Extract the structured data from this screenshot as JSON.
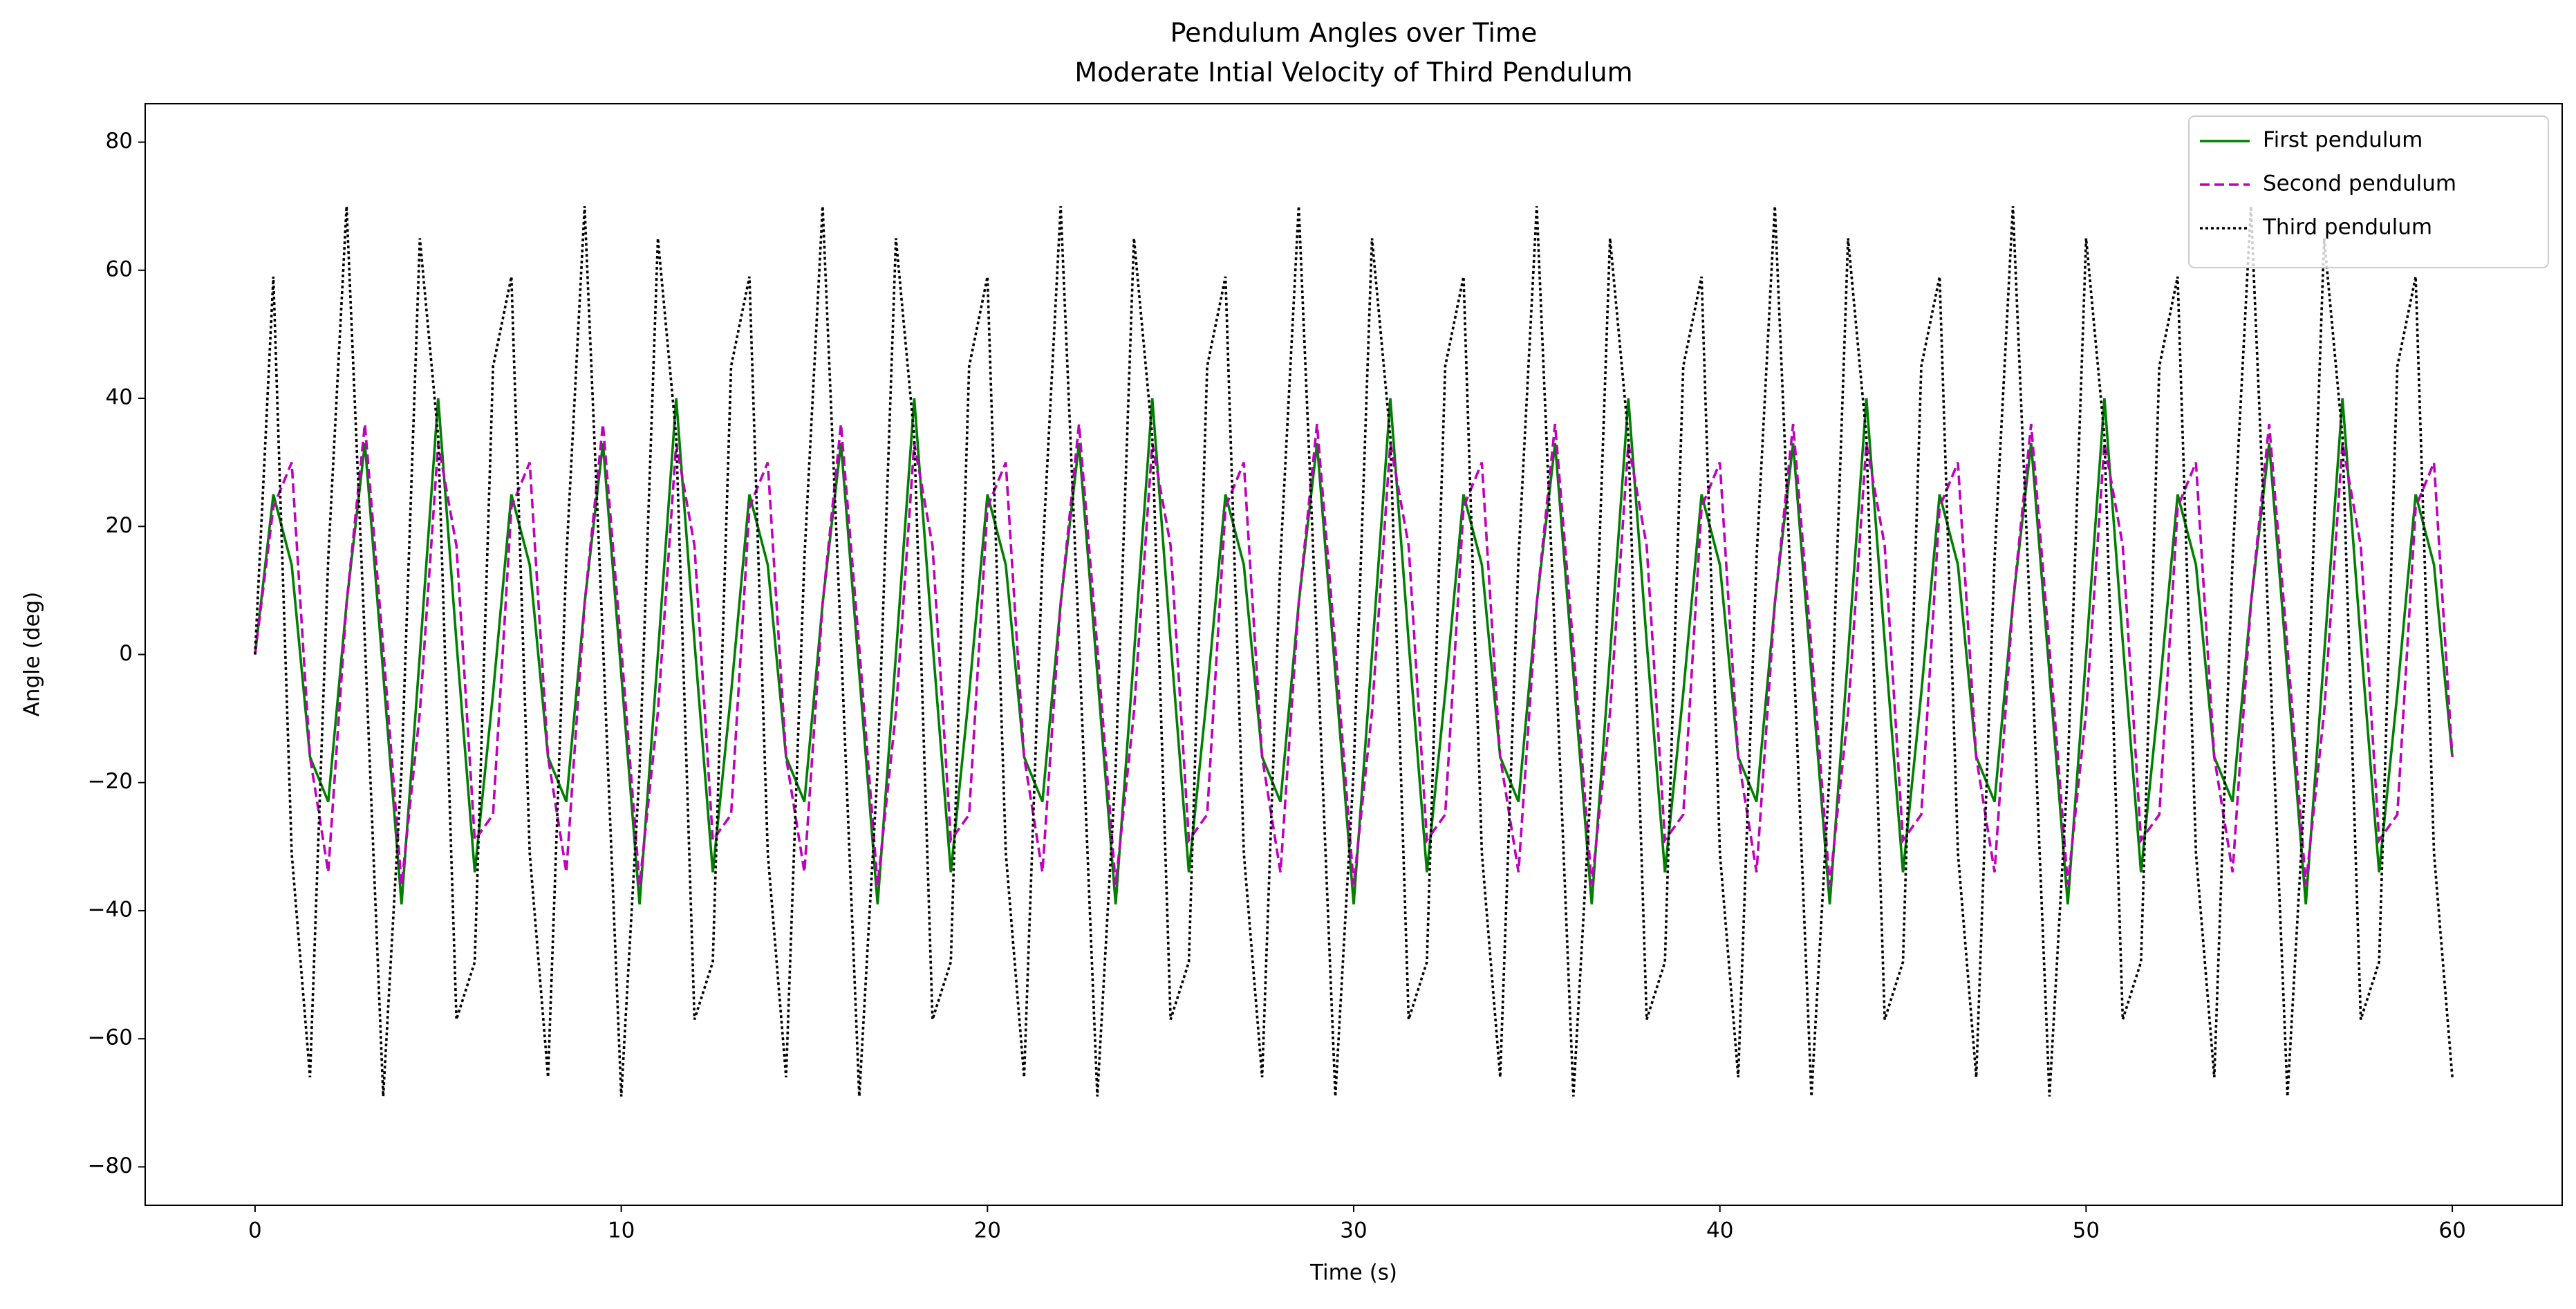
{
  "chart_data": {
    "type": "line",
    "title": "Pendulum Angles over Time",
    "subtitle": "Moderate Intial Velocity of Third Pendulum",
    "x_label": "Time (s)",
    "y_label": "Angle (deg)",
    "xlim": [
      -3,
      63
    ],
    "ylim": [
      -86,
      86
    ],
    "xticks": [
      0,
      10,
      20,
      30,
      40,
      50,
      60
    ],
    "yticks": [
      {
        "value": -80,
        "label": "−80"
      },
      {
        "value": -60,
        "label": "−60"
      },
      {
        "value": -40,
        "label": "−40"
      },
      {
        "value": -20,
        "label": "−20"
      },
      0,
      20,
      40,
      60,
      80
    ],
    "grid": false,
    "legend": "upper right",
    "x": [
      0,
      0.5,
      1,
      1.5,
      2,
      2.5,
      3,
      3.5,
      4,
      4.5,
      5,
      5.5,
      6,
      6.5,
      7,
      7.5,
      8,
      8.5,
      9,
      9.5,
      10,
      10.5,
      11,
      11.5,
      12,
      12.5,
      13,
      13.5,
      14,
      14.5,
      15,
      15.5,
      16,
      16.5,
      17,
      17.5,
      18,
      18.5,
      19,
      19.5,
      20,
      20.5,
      21,
      21.5,
      22,
      22.5,
      23,
      23.5,
      24,
      24.5,
      25,
      25.5,
      26,
      26.5,
      27,
      27.5,
      28,
      28.5,
      29,
      29.5,
      30,
      30.5,
      31,
      31.5,
      32,
      32.5,
      33,
      33.5,
      34,
      34.5,
      35,
      35.5,
      36,
      36.5,
      37,
      37.5,
      38,
      38.5,
      39,
      39.5,
      40,
      40.5,
      41,
      41.5,
      42,
      42.5,
      43,
      43.5,
      44,
      44.5,
      45,
      45.5,
      46,
      46.5,
      47,
      47.5,
      48,
      48.5,
      49,
      49.5,
      50,
      50.5,
      51,
      51.5,
      52,
      52.5,
      53,
      53.5,
      54,
      54.5,
      55,
      55.5,
      56,
      56.5,
      57,
      57.5,
      58,
      58.5,
      59,
      59.5,
      60
    ],
    "series": [
      {
        "name": "First pendulum",
        "color": "#008000",
        "linestyle": "solid",
        "values": [
          0,
          25,
          14,
          -16,
          -23,
          8,
          33,
          -3,
          -39,
          0,
          40,
          2,
          -34,
          -6,
          25,
          14,
          -16,
          -23,
          8,
          33,
          -3,
          -39,
          0,
          40,
          2,
          -34,
          -6,
          25,
          14,
          -16,
          -23,
          8,
          33,
          -3,
          -39,
          0,
          40,
          2,
          -34,
          -6,
          25,
          14,
          -16,
          -23,
          8,
          33,
          -3,
          -39,
          0,
          40,
          2,
          -34,
          -6,
          25,
          14,
          -16,
          -23,
          8,
          33,
          -3,
          -39,
          0,
          40,
          2,
          -34,
          -6,
          25,
          14,
          -16,
          -23,
          8,
          33,
          -3,
          -39,
          0,
          40,
          2,
          -34,
          -6,
          25,
          14,
          -16,
          -23,
          8,
          33,
          -3,
          -39,
          0,
          40,
          2,
          -34,
          -6,
          25,
          14,
          -16,
          -23,
          8,
          33,
          -3,
          -39,
          0,
          40,
          2,
          -34,
          -6,
          25,
          14,
          -16,
          -23,
          8,
          33,
          -3,
          -39,
          0,
          40,
          2,
          -34,
          -6,
          25,
          14,
          -16
        ]
      },
      {
        "name": "Second pendulum",
        "color": "#bf00bf",
        "linestyle": "dashed",
        "values": [
          0,
          23,
          30,
          -16,
          -34,
          8,
          36,
          1,
          -36,
          -9,
          33,
          17,
          -29,
          -25,
          23,
          30,
          -16,
          -34,
          8,
          36,
          1,
          -36,
          -9,
          33,
          17,
          -29,
          -25,
          23,
          30,
          -16,
          -34,
          8,
          36,
          1,
          -36,
          -9,
          33,
          17,
          -29,
          -25,
          23,
          30,
          -16,
          -34,
          8,
          36,
          1,
          -36,
          -9,
          33,
          17,
          -29,
          -25,
          23,
          30,
          -16,
          -34,
          8,
          36,
          1,
          -36,
          -9,
          33,
          17,
          -29,
          -25,
          23,
          30,
          -16,
          -34,
          8,
          36,
          1,
          -36,
          -9,
          33,
          17,
          -29,
          -25,
          23,
          30,
          -16,
          -34,
          8,
          36,
          1,
          -36,
          -9,
          33,
          17,
          -29,
          -25,
          23,
          30,
          -16,
          -34,
          8,
          36,
          1,
          -36,
          -9,
          33,
          17,
          -29,
          -25,
          23,
          30,
          -16,
          -34,
          8,
          36,
          1,
          -36,
          -9,
          33,
          17,
          -29,
          -25,
          23,
          30,
          -16
        ]
      },
      {
        "name": "Third pendulum",
        "color": "#000000",
        "linestyle": "dotted",
        "values": [
          0,
          59,
          -31,
          -66,
          15,
          70,
          2,
          -69,
          -18,
          65,
          34,
          -57,
          -48,
          45,
          59,
          -31,
          -66,
          15,
          70,
          2,
          -69,
          -18,
          65,
          34,
          -57,
          -48,
          45,
          59,
          -31,
          -66,
          15,
          70,
          2,
          -69,
          -18,
          65,
          34,
          -57,
          -48,
          45,
          59,
          -31,
          -66,
          15,
          70,
          2,
          -69,
          -18,
          65,
          34,
          -57,
          -48,
          45,
          59,
          -31,
          -66,
          15,
          70,
          2,
          -69,
          -18,
          65,
          34,
          -57,
          -48,
          45,
          59,
          -31,
          -66,
          15,
          70,
          2,
          -69,
          -18,
          65,
          34,
          -57,
          -48,
          45,
          59,
          -31,
          -66,
          15,
          70,
          2,
          -69,
          -18,
          65,
          34,
          -57,
          -48,
          45,
          59,
          -31,
          -66,
          15,
          70,
          2,
          -69,
          -18,
          65,
          34,
          -57,
          -48,
          45,
          59,
          -31,
          -66,
          15,
          70,
          2,
          -69,
          -18,
          65,
          34,
          -57,
          -48,
          45,
          59,
          -31,
          -66
        ]
      }
    ]
  }
}
